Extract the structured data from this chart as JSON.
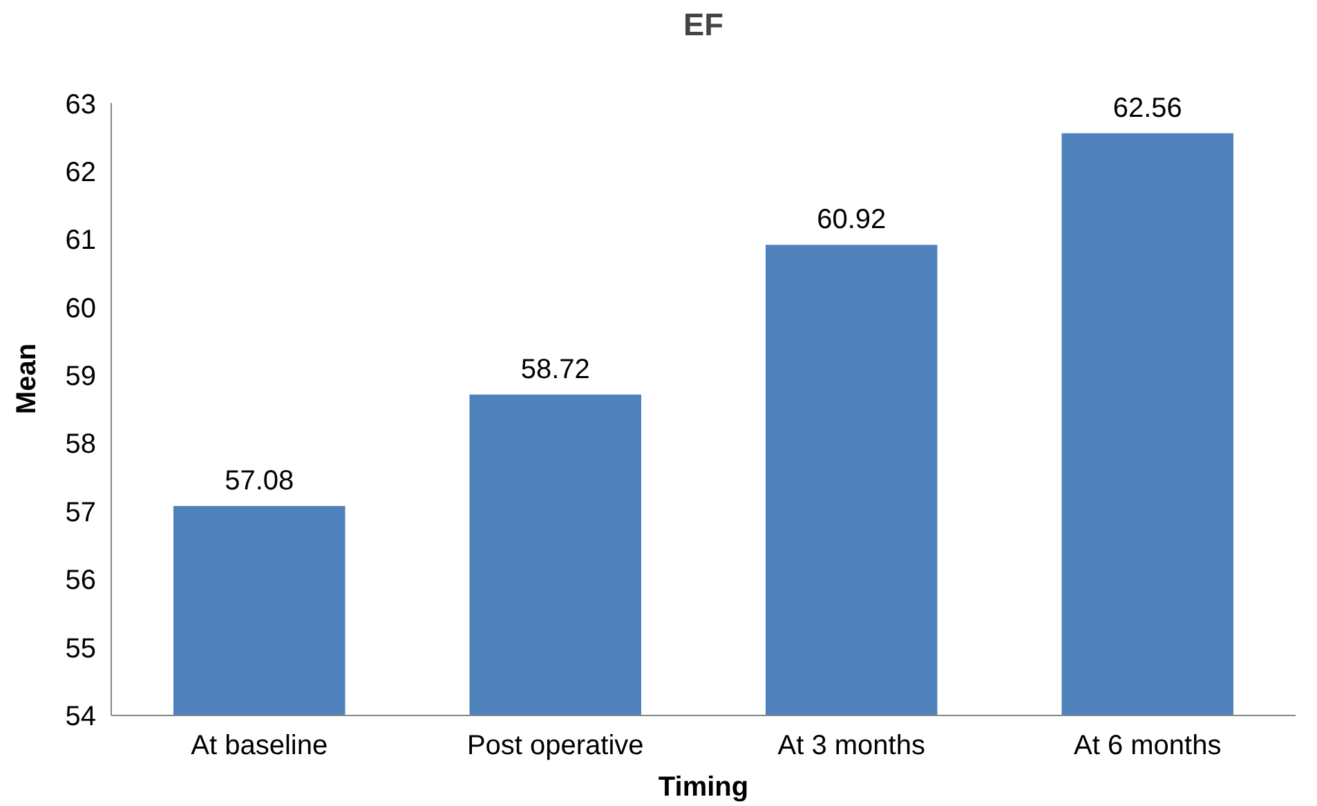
{
  "chart_data": {
    "type": "bar",
    "title": "EF",
    "xlabel": "Timing",
    "ylabel": "Mean",
    "categories": [
      "At baseline",
      "Post operative",
      "At 3 months",
      "At 6 months"
    ],
    "values": [
      57.08,
      58.72,
      60.92,
      62.56
    ],
    "color": "#4f81bd",
    "ylim": [
      54,
      63
    ],
    "yticks": [
      54,
      55,
      56,
      57,
      58,
      59,
      60,
      61,
      62,
      63
    ],
    "data_labels": true,
    "grid": false
  }
}
